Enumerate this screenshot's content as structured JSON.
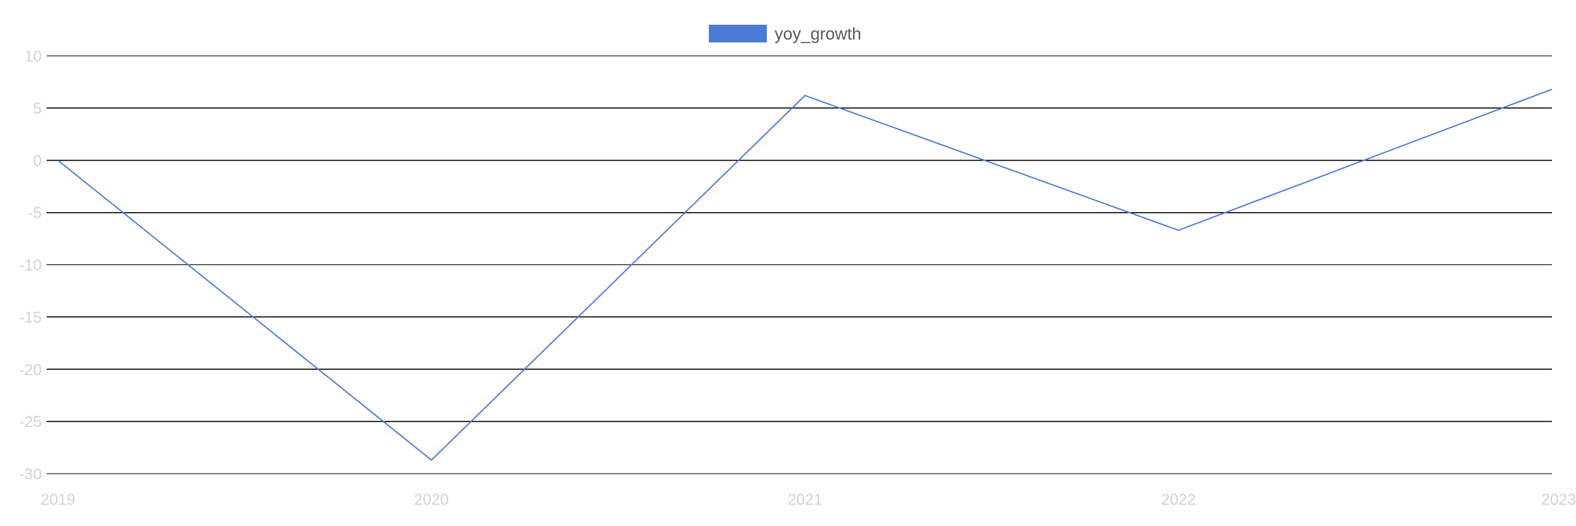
{
  "chart_data": {
    "type": "line",
    "title": "",
    "xlabel": "",
    "ylabel": "",
    "categories": [
      "2019",
      "2020",
      "2021",
      "2022",
      "2023"
    ],
    "series": [
      {
        "name": "yoy_growth",
        "values": [
          0,
          -28.7,
          6.2,
          -6.7,
          6.8
        ],
        "color": "#4a7bd6"
      }
    ],
    "ylim": [
      -30,
      10
    ],
    "yticks": [
      10,
      5,
      0,
      -5,
      -10,
      -15,
      -20,
      -25,
      -30
    ],
    "grid": true,
    "legend_position": "top-center"
  }
}
